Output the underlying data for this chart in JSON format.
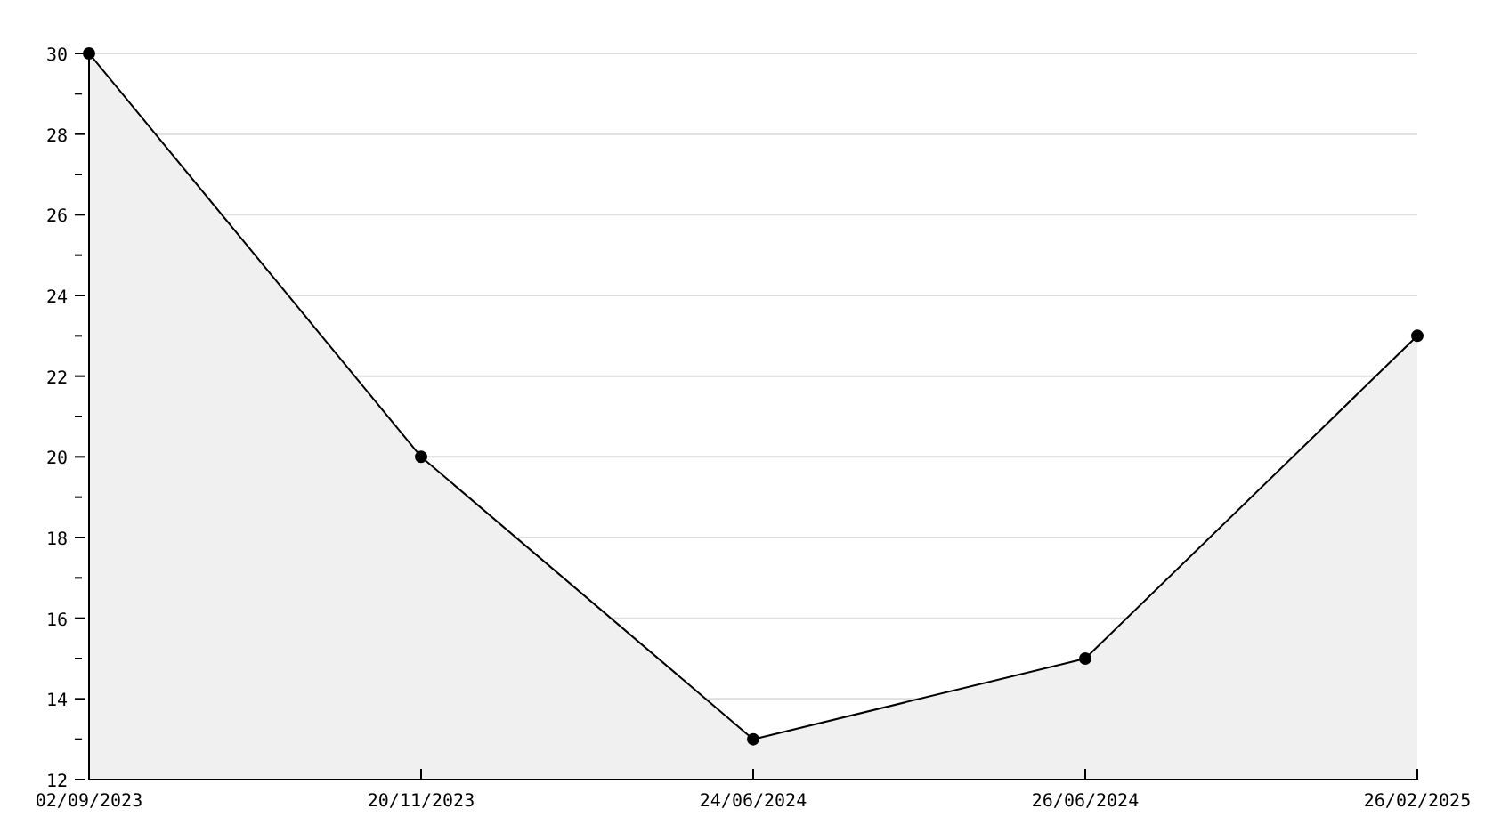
{
  "chart_data": {
    "type": "area",
    "categories": [
      "02/09/2023",
      "20/11/2023",
      "24/06/2024",
      "26/06/2024",
      "26/02/2025"
    ],
    "series": [
      {
        "color": "#000000",
        "values": [
          30,
          20,
          13,
          15,
          23
        ]
      }
    ],
    "ylim": [
      12,
      30
    ],
    "yticks": [
      12,
      {
        "value": 13,
        "label": null
      },
      14,
      {
        "value": 15,
        "label": null
      },
      16,
      {
        "value": 17,
        "label": null
      },
      18,
      {
        "value": 19,
        "label": null
      },
      20,
      {
        "value": 21,
        "label": null
      },
      22,
      {
        "value": 23,
        "label": null
      },
      24,
      {
        "value": 25,
        "label": null
      },
      26,
      {
        "value": 27,
        "label": null
      },
      28,
      {
        "value": 29,
        "label": null
      },
      30
    ],
    "grid": "y",
    "marker": "circle",
    "legend": false
  }
}
